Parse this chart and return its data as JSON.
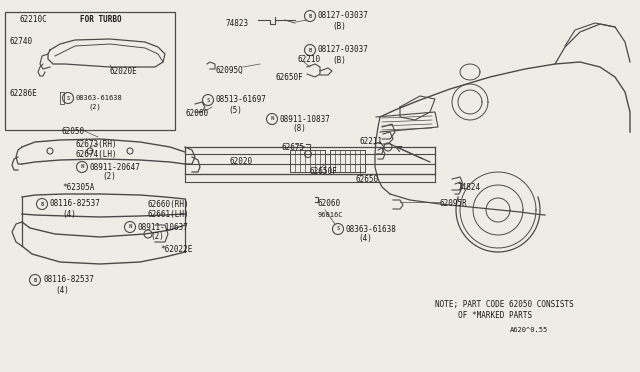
{
  "bg_color": "#eeede5",
  "line_color": "#4a4a4a",
  "text_color": "#1a1a1a",
  "fig_width": 6.4,
  "fig_height": 3.72,
  "dpi": 100,
  "note_line1": "NOTE; PART CODE 62050 CONSISTS",
  "note_line2": "     OF *MARKED PARTS",
  "ref_code": "A620^0.55"
}
